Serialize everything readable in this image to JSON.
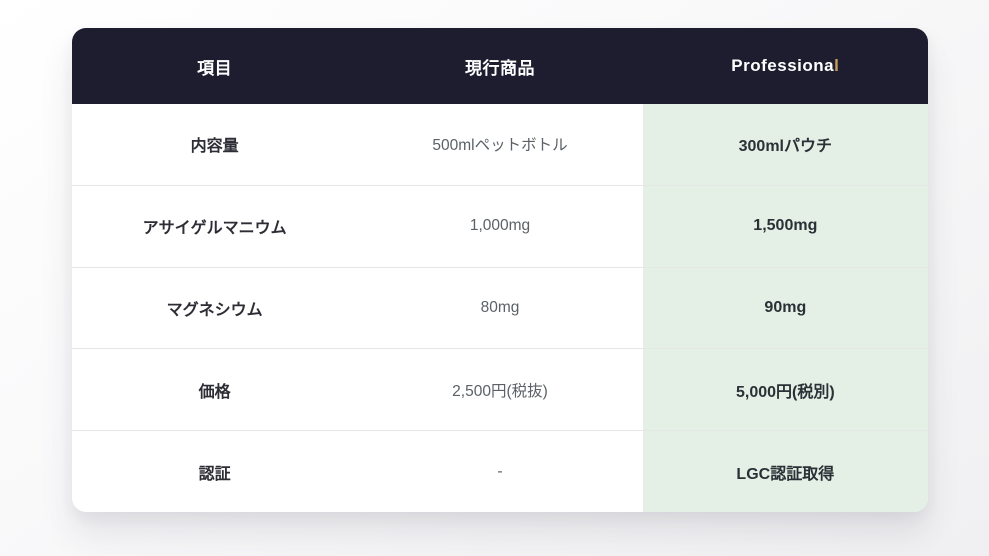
{
  "colors": {
    "header_bg": "#1d1d2f",
    "header_text": "#ffffff",
    "accent_gold": "#c2a055",
    "highlight_column_bg": "#e4f0e6",
    "card_bg": "#ffffff",
    "item_text": "#2d2d35",
    "current_value_text": "#5b6166",
    "professional_value_text": "#2a3136",
    "divider": "#e5e7e7",
    "page_bg": "#f0f0f2"
  },
  "display": {
    "professional_label_main": "Professiona",
    "professional_label_accent": "l"
  },
  "chart_data": {
    "type": "table",
    "title": "",
    "columns": [
      "項目",
      "現行商品",
      "Professional"
    ],
    "rows": [
      [
        "内容量",
        "500mlペットボトル",
        "300mlパウチ"
      ],
      [
        "アサイゲルマニウム",
        "1,000mg",
        "1,500mg"
      ],
      [
        "マグネシウム",
        "80mg",
        "90mg"
      ],
      [
        "価格",
        "2,500円(税抜)",
        "5,000円(税別)"
      ],
      [
        "認証",
        "-",
        "LGC認証取得"
      ]
    ],
    "highlight_column": "Professional",
    "layout_hints": {
      "header_style": "dark-navy",
      "highlight_column_index": 2,
      "column_count": 3,
      "row_count": 5
    }
  }
}
